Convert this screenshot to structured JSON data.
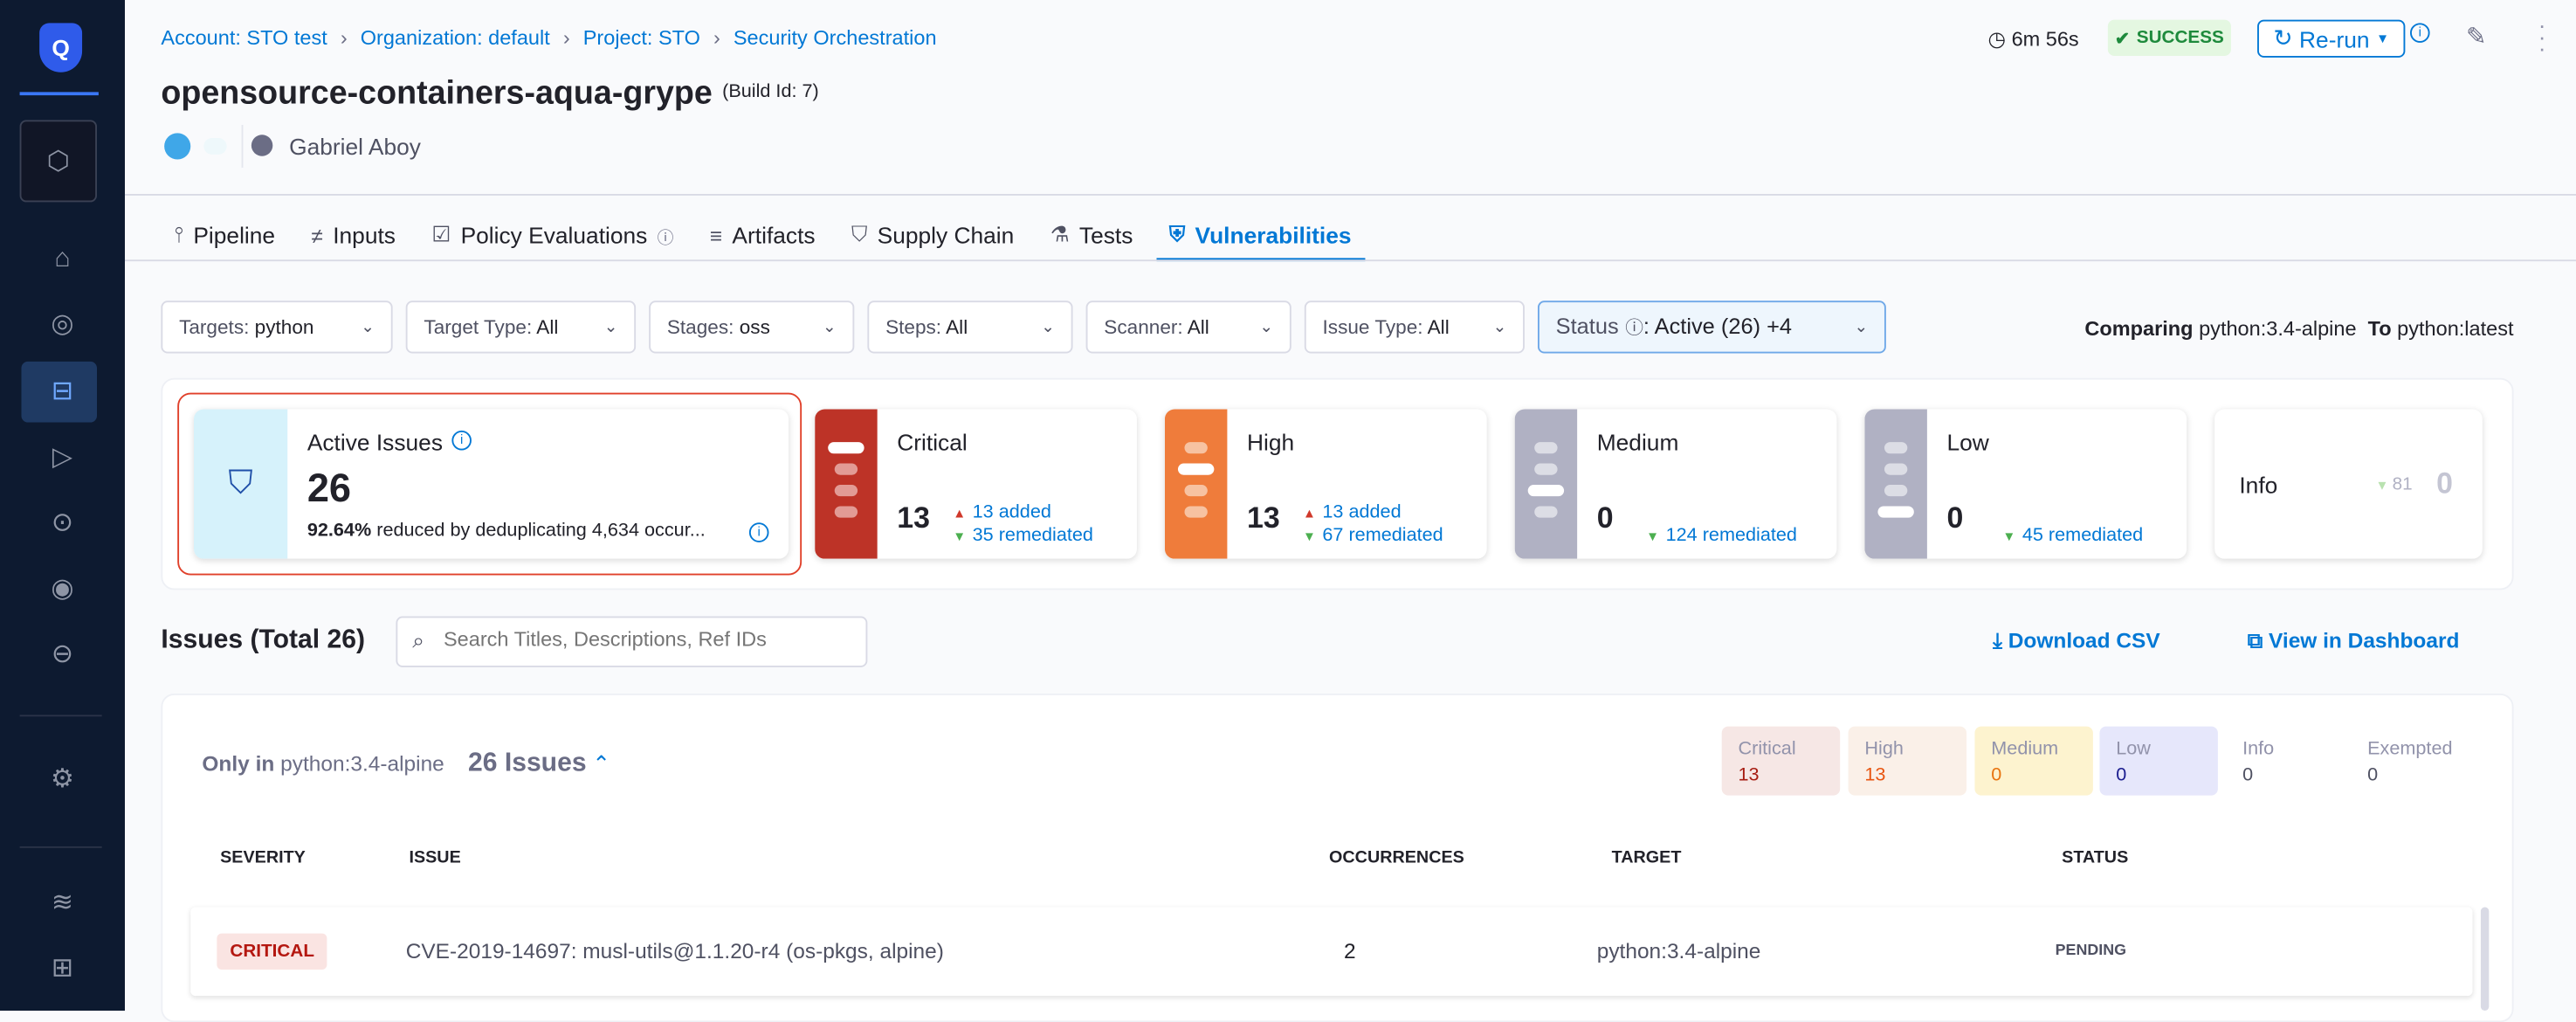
{
  "sidebar": {
    "items": [
      "logo",
      "modules",
      "home",
      "security-overview",
      "pipelines",
      "executions",
      "target",
      "exemptions",
      "deployments",
      "settings",
      "layers",
      "integrations"
    ]
  },
  "breadcrumb": [
    "Account: STO test",
    "Organization: default",
    "Project: STO",
    "Security Orchestration"
  ],
  "header": {
    "title": "opensource-containers-aqua-grype",
    "build_id": "(Build Id: 7)",
    "user": "Gabriel Aboy",
    "duration": "6m 56s",
    "status": "SUCCESS",
    "rerun": "Re-run"
  },
  "tabs": [
    {
      "label": "Pipeline",
      "icon": "pipeline-icon"
    },
    {
      "label": "Inputs",
      "icon": "inputs-icon"
    },
    {
      "label": "Policy Evaluations",
      "icon": "policy-icon"
    },
    {
      "label": "Artifacts",
      "icon": "artifacts-icon"
    },
    {
      "label": "Supply Chain",
      "icon": "supply-chain-icon"
    },
    {
      "label": "Tests",
      "icon": "flask-icon"
    },
    {
      "label": "Vulnerabilities",
      "icon": "shield-icon",
      "active": true
    }
  ],
  "filters": [
    {
      "label": "Targets:",
      "value": "python"
    },
    {
      "label": "Target Type:",
      "value": "All"
    },
    {
      "label": "Stages:",
      "value": "oss"
    },
    {
      "label": "Steps:",
      "value": "All"
    },
    {
      "label": "Scanner:",
      "value": "All"
    },
    {
      "label": "Issue Type:",
      "value": "All"
    },
    {
      "label": "Status",
      "value": ": Active (26) +4"
    }
  ],
  "comparing": {
    "label": "Comparing",
    "base": "python:3.4-alpine",
    "to_label": "To",
    "target": "python:latest"
  },
  "summary": {
    "active": {
      "label": "Active Issues",
      "count": "26",
      "pct": "92.64%",
      "text": "reduced by deduplicating 4,634 occur..."
    },
    "critical": {
      "label": "Critical",
      "count": "13",
      "added": "13 added",
      "remediated": "35 remediated"
    },
    "high": {
      "label": "High",
      "count": "13",
      "added": "13 added",
      "remediated": "67 remediated"
    },
    "medium": {
      "label": "Medium",
      "count": "0",
      "remediated": "124 remediated"
    },
    "low": {
      "label": "Low",
      "count": "0",
      "remediated": "45 remediated"
    },
    "info": {
      "label": "Info",
      "delta": "81",
      "count": "0"
    }
  },
  "colors": {
    "critical": "#bd3327",
    "high": "#ef7c3b",
    "neutral": "#b0b1c3",
    "accent": "#0278d5"
  },
  "issues": {
    "title": "Issues (Total 26)",
    "search_placeholder": "Search Titles, Descriptions, Ref IDs",
    "download": "Download CSV",
    "dashboard": "View in Dashboard",
    "group": {
      "only_in": "Only in",
      "target": "python:3.4-alpine",
      "count": "26 Issues"
    },
    "chips": [
      {
        "label": "Critical",
        "value": "13"
      },
      {
        "label": "High",
        "value": "13"
      },
      {
        "label": "Medium",
        "value": "0"
      },
      {
        "label": "Low",
        "value": "0"
      },
      {
        "label": "Info",
        "value": "0"
      },
      {
        "label": "Exempted",
        "value": "0"
      }
    ],
    "columns": [
      "SEVERITY",
      "ISSUE",
      "OCCURRENCES",
      "TARGET",
      "STATUS"
    ],
    "rows": [
      {
        "severity": "CRITICAL",
        "issue": "CVE-2019-14697: musl-utils@1.1.20-r4 (os-pkgs, alpine)",
        "occurrences": "2",
        "target": "python:3.4-alpine",
        "status": "PENDING"
      }
    ]
  }
}
